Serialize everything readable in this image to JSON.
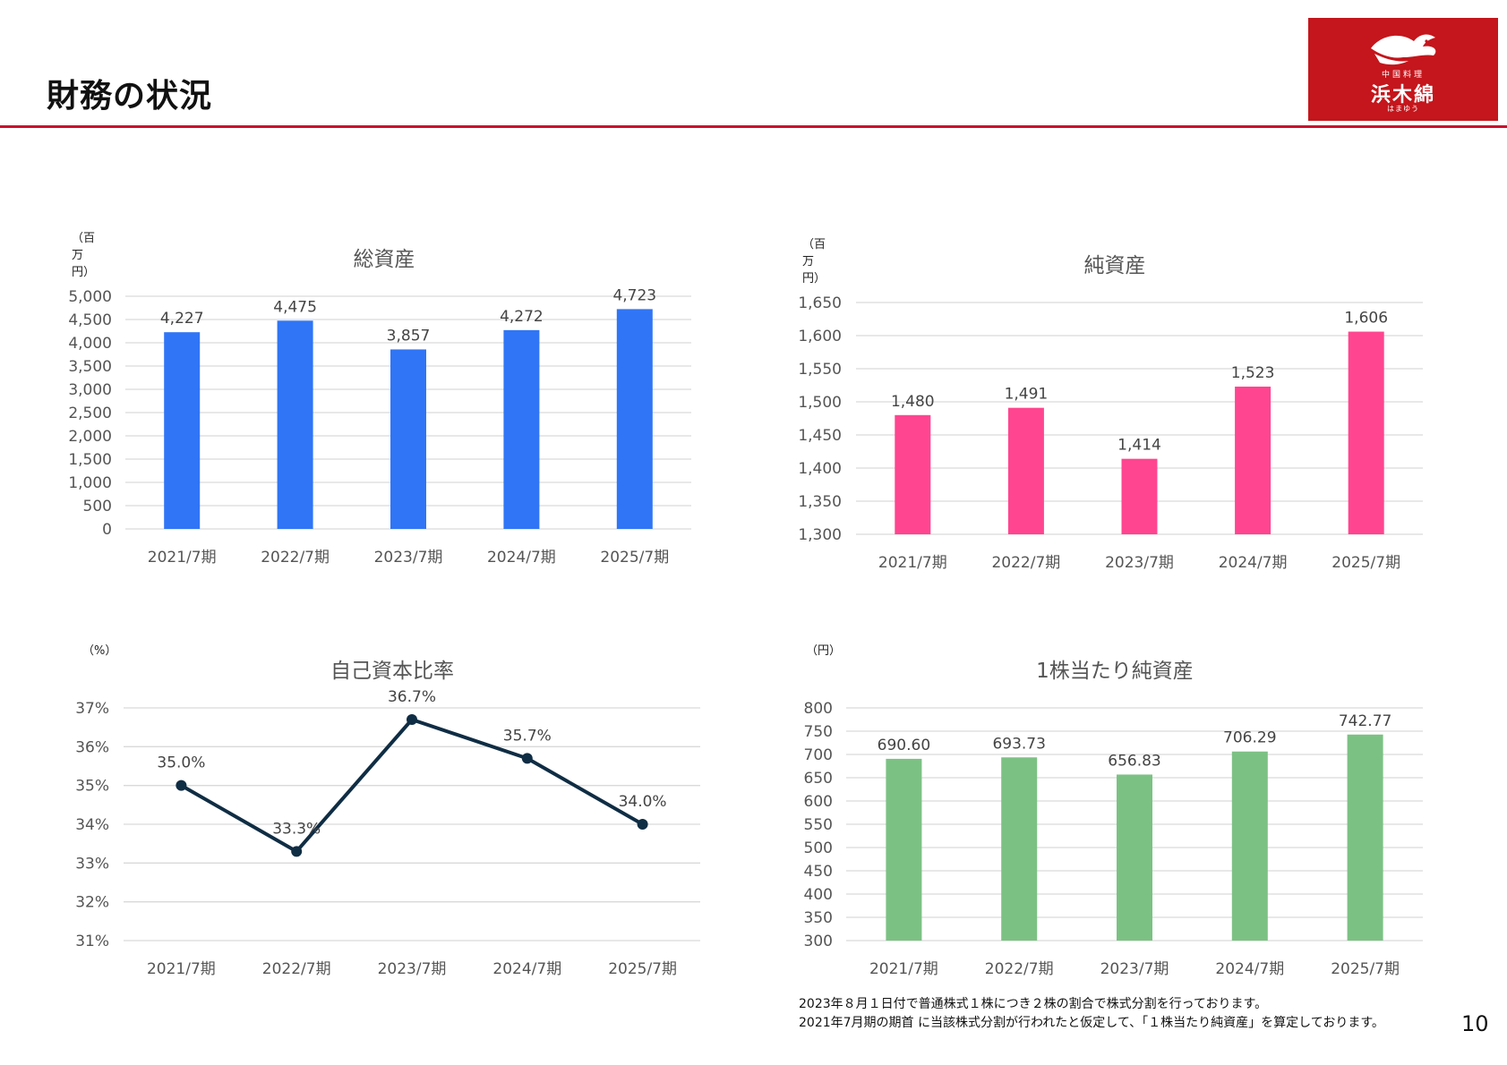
{
  "page": {
    "title": "財務の状況",
    "page_number": "10",
    "logo": {
      "cn": "中国料理",
      "name": "浜木綿",
      "kana": "はまゆう"
    },
    "notes": [
      "2023年８月１日付で普通株式１株につき２株の割合で株式分割を行っております。",
      "2021年7月期の期首 に当該株式分割が行われたと仮定して、「１株当たり純資産」を算定しております。"
    ]
  },
  "chart_data": [
    {
      "type": "bar",
      "title": "総資産",
      "unit": "（百万円）",
      "categories": [
        "2021/7期",
        "2022/7期",
        "2023/7期",
        "2024/7期",
        "2025/7期"
      ],
      "values": [
        4227,
        4475,
        3857,
        4272,
        4723
      ],
      "value_labels": [
        "4,227",
        "4,475",
        "3,857",
        "4,272",
        "4,723"
      ],
      "ylim": [
        0,
        5000
      ],
      "yticks": [
        "0",
        "500",
        "1,000",
        "1,500",
        "2,000",
        "2,500",
        "3,000",
        "3,500",
        "4,000",
        "4,500",
        "5,000"
      ],
      "color": "#2f75f6",
      "grid": true
    },
    {
      "type": "bar",
      "title": "純資産",
      "unit": "（百万円）",
      "categories": [
        "2021/7期",
        "2022/7期",
        "2023/7期",
        "2024/7期",
        "2025/7期"
      ],
      "values": [
        1480,
        1491,
        1414,
        1523,
        1606
      ],
      "value_labels": [
        "1,480",
        "1,491",
        "1,414",
        "1,523",
        "1,606"
      ],
      "ylim": [
        1300,
        1650
      ],
      "yticks": [
        "1,300",
        "1,350",
        "1,400",
        "1,450",
        "1,500",
        "1,550",
        "1,600",
        "1,650"
      ],
      "color": "#ff4590",
      "grid": true
    },
    {
      "type": "line",
      "title": "自己資本比率",
      "unit": "（%）",
      "categories": [
        "2021/7期",
        "2022/7期",
        "2023/7期",
        "2024/7期",
        "2025/7期"
      ],
      "values": [
        35.0,
        33.3,
        36.7,
        35.7,
        34.0
      ],
      "value_labels": [
        "35.0%",
        "33.3%",
        "36.7%",
        "35.7%",
        "34.0%"
      ],
      "ylim": [
        31,
        37
      ],
      "yticks": [
        "31%",
        "32%",
        "33%",
        "34%",
        "35%",
        "36%",
        "37%"
      ],
      "color": "#0f2d44",
      "grid": true
    },
    {
      "type": "bar",
      "title": "1株当たり純資産",
      "unit": "（円）",
      "categories": [
        "2021/7期",
        "2022/7期",
        "2023/7期",
        "2024/7期",
        "2025/7期"
      ],
      "values": [
        690.6,
        693.73,
        656.83,
        706.29,
        742.77
      ],
      "value_labels": [
        "690.60",
        "693.73",
        "656.83",
        "706.29",
        "742.77"
      ],
      "ylim": [
        300,
        800
      ],
      "yticks": [
        "300",
        "350",
        "400",
        "450",
        "500",
        "550",
        "600",
        "650",
        "700",
        "750",
        "800"
      ],
      "color": "#7cc184",
      "grid": true
    }
  ]
}
